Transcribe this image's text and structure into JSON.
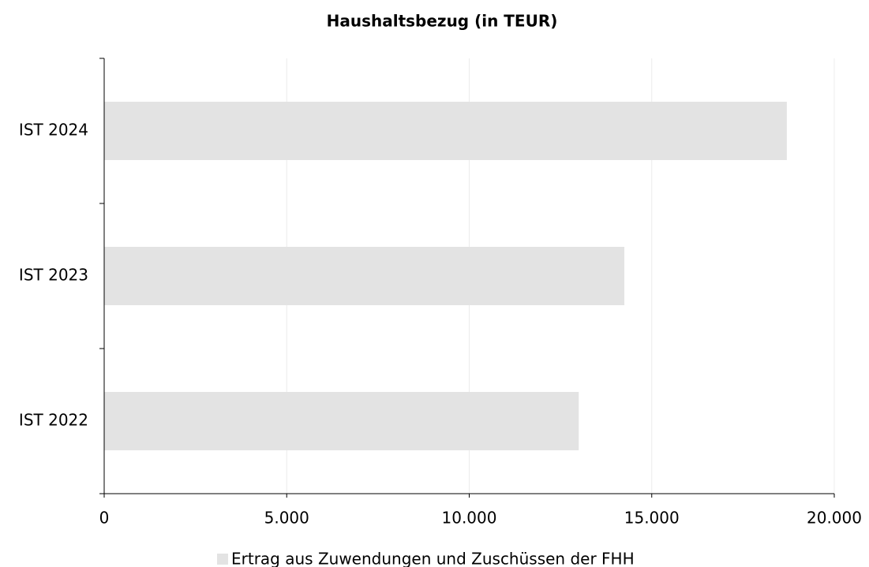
{
  "chart_data": {
    "type": "hbar",
    "title": "Haushaltsbezug (in TEUR)",
    "categories": [
      "IST 2022",
      "IST 2023",
      "IST 2024"
    ],
    "series": [
      {
        "name": "Ertrag aus Zuwendungen und Zuschüssen der FHH",
        "color": "#e3e3e3",
        "values": [
          13000,
          14250,
          18700
        ]
      }
    ],
    "xlim": [
      0,
      20000
    ],
    "xticks": [
      0,
      {
        "value": 5000,
        "label": "5.000"
      },
      {
        "value": 10000,
        "label": "10.000"
      },
      {
        "value": 15000,
        "label": "15.000"
      },
      {
        "value": 20000,
        "label": "20.000"
      }
    ],
    "grid": true,
    "legend": "bottom"
  }
}
